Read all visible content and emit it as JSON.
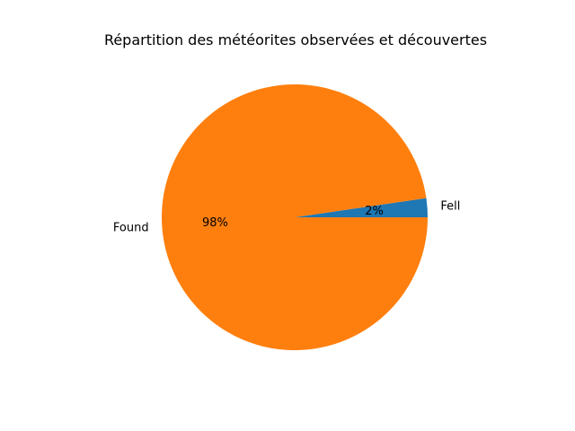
{
  "chart_data": {
    "type": "pie",
    "title": "Répartition des météorites observées et découvertes",
    "categories": [
      "Fell",
      "Found"
    ],
    "values": [
      2.3,
      97.7
    ],
    "percent_labels": [
      "2%",
      "98%"
    ],
    "colors": [
      "#1f77b4",
      "#ff7f0e"
    ],
    "start_angle_deg": 0,
    "direction": "counterclockwise",
    "legend": "none"
  }
}
